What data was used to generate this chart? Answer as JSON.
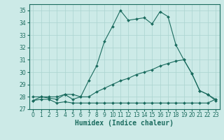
{
  "xlabel": "Humidex (Indice chaleur)",
  "bg_color": "#cceae7",
  "grid_color": "#aad4d0",
  "line_color": "#1a6b5e",
  "xlim": [
    -0.5,
    23.5
  ],
  "ylim": [
    27,
    35.5
  ],
  "yticks": [
    27,
    28,
    29,
    30,
    31,
    32,
    33,
    34,
    35
  ],
  "xticks": [
    0,
    1,
    2,
    3,
    4,
    5,
    6,
    7,
    8,
    9,
    10,
    11,
    12,
    13,
    14,
    15,
    16,
    17,
    18,
    19,
    20,
    21,
    22,
    23
  ],
  "series": [
    {
      "x": [
        0,
        1,
        2,
        3,
        4,
        5,
        6,
        7,
        8,
        9,
        10,
        11,
        12,
        13,
        14,
        15,
        16,
        17,
        18,
        19,
        20,
        21,
        22,
        23
      ],
      "y": [
        27.7,
        27.8,
        27.8,
        27.5,
        27.6,
        27.5,
        27.5,
        27.5,
        27.5,
        27.5,
        27.5,
        27.5,
        27.5,
        27.5,
        27.5,
        27.5,
        27.5,
        27.5,
        27.5,
        27.5,
        27.5,
        27.5,
        27.5,
        27.8
      ]
    },
    {
      "x": [
        0,
        1,
        2,
        3,
        4,
        5,
        6,
        7,
        8,
        9,
        10,
        11,
        12,
        13,
        14,
        15,
        16,
        17,
        18,
        19,
        20,
        21,
        22,
        23
      ],
      "y": [
        28.0,
        28.0,
        28.0,
        28.0,
        28.2,
        28.2,
        28.0,
        28.0,
        28.4,
        28.7,
        29.0,
        29.3,
        29.5,
        29.8,
        30.0,
        30.2,
        30.5,
        30.7,
        30.9,
        31.0,
        29.9,
        28.5,
        28.2,
        27.8
      ]
    },
    {
      "x": [
        0,
        1,
        2,
        3,
        4,
        5,
        6,
        7,
        8,
        9,
        10,
        11,
        12,
        13,
        14,
        15,
        16,
        17,
        18,
        19,
        20,
        21,
        22,
        23
      ],
      "y": [
        27.7,
        28.0,
        27.9,
        27.8,
        28.2,
        27.8,
        28.0,
        29.3,
        30.5,
        32.5,
        33.7,
        35.0,
        34.2,
        34.3,
        34.4,
        33.9,
        34.9,
        34.5,
        32.2,
        31.0,
        29.9,
        28.5,
        28.2,
        27.7
      ]
    }
  ]
}
